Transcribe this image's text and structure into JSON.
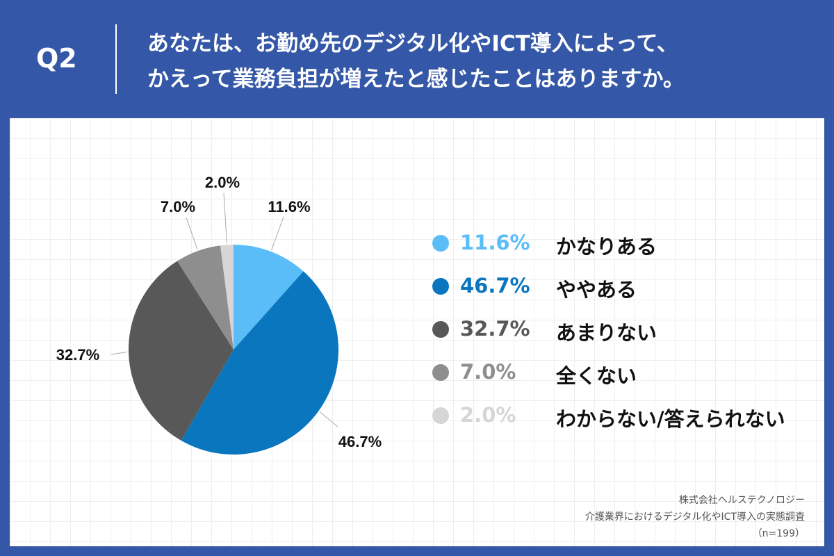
{
  "header": {
    "q_label": "Q2",
    "title_line1": "あなたは、お勤め先のデジタル化やICT導入によって、",
    "title_line2": "かえって業務負担が増えたと感じたことはありますか。"
  },
  "chart_data": {
    "type": "pie",
    "start_angle": "12 o'clock, clockwise",
    "slices": [
      {
        "label": "かなりある",
        "value": 11.6,
        "display": "11.6%",
        "color": "#5bbdf8"
      },
      {
        "label": "ややある",
        "value": 46.7,
        "display": "46.7%",
        "color": "#0a76bd"
      },
      {
        "label": "あまりない",
        "value": 32.7,
        "display": "32.7%",
        "color": "#585858"
      },
      {
        "label": "全くない",
        "value": 7.0,
        "display": "7.0%",
        "color": "#8e8e8e"
      },
      {
        "label": "わからない/答えられない",
        "value": 2.0,
        "display": "2.0%",
        "color": "#d6d6d6"
      }
    ],
    "legend_placement": "right"
  },
  "footnote": {
    "line1": "株式会社ヘルステクノロジー",
    "line2": "介護業界におけるデジタル化やICT導入の実態調査",
    "line3": "（n=199）"
  },
  "colors": {
    "background": "#3457a7",
    "panel": "#ffffff"
  }
}
